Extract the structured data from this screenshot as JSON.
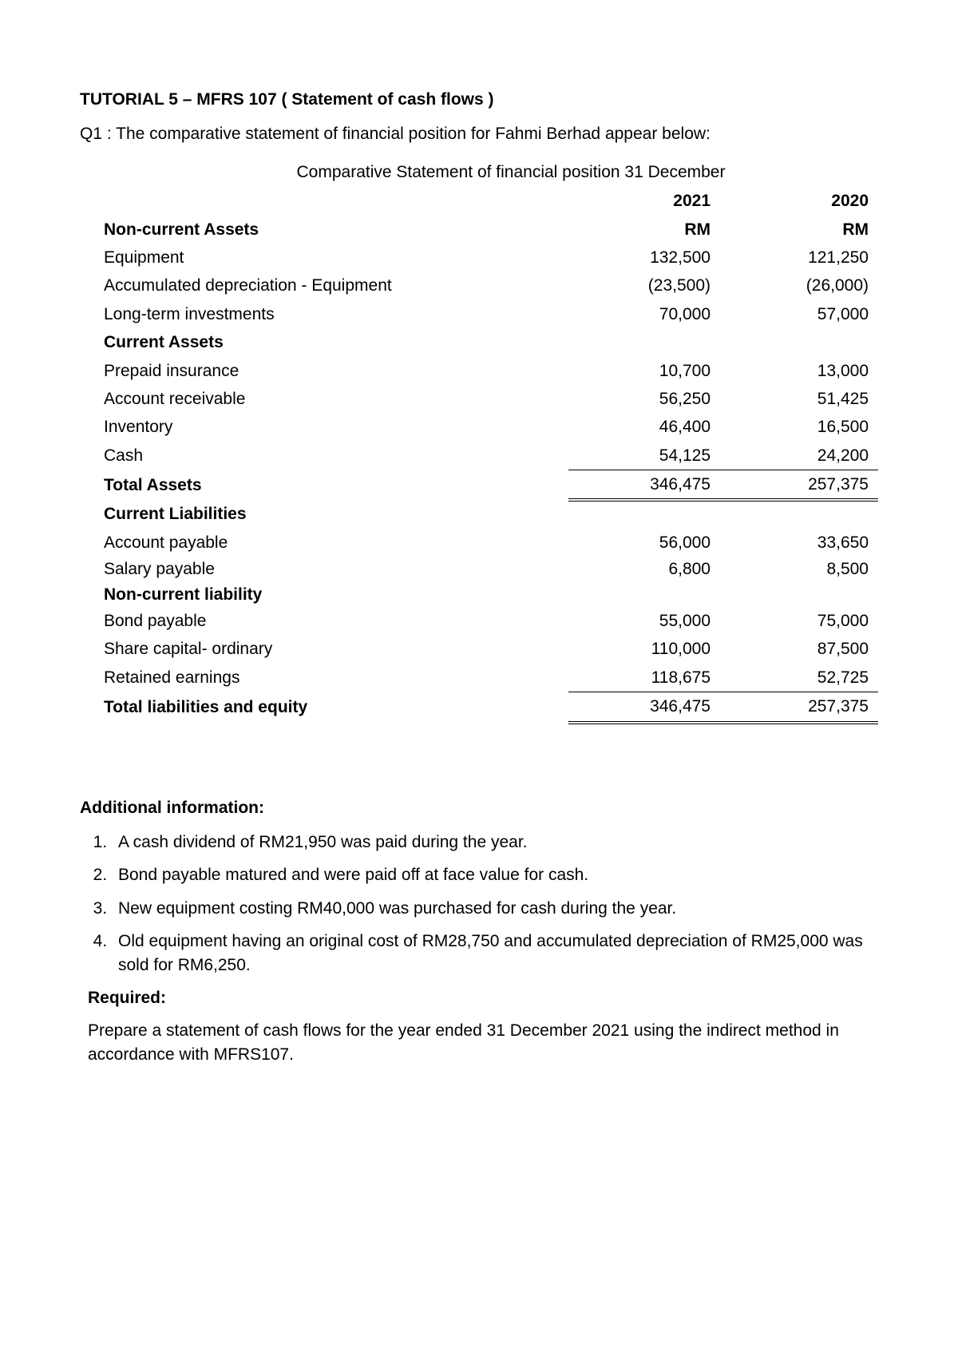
{
  "doc": {
    "title": "TUTORIAL 5 – MFRS 107 ( Statement of cash flows )",
    "question_intro": "Q1 : The comparative statement of financial position for Fahmi Berhad appear below:",
    "table_caption": "Comparative Statement of financial position 31 December"
  },
  "table": {
    "year1": "2021",
    "year2": "2020",
    "currency1": "RM",
    "currency2": "RM",
    "sections": {
      "nca_header": "Non-current Assets",
      "ca_header": "Current Assets",
      "ta_header": "Total Assets",
      "cl_header": "Current Liabilities",
      "ncl_header": "Non-current liability",
      "tle_header": "Total liabilities and equity"
    },
    "rows": {
      "equipment": {
        "label": "Equipment",
        "y1": "132,500",
        "y2": "121,250"
      },
      "accdep": {
        "label": "Accumulated depreciation - Equipment",
        "y1": "(23,500)",
        "y2": "(26,000)"
      },
      "ltinv": {
        "label": "Long-term investments",
        "y1": "70,000",
        "y2": "57,000"
      },
      "prepaid": {
        "label": "Prepaid insurance",
        "y1": "10,700",
        "y2": "13,000"
      },
      "ar": {
        "label": "Account receivable",
        "y1": "56,250",
        "y2": "51,425"
      },
      "inventory": {
        "label": "Inventory",
        "y1": "46,400",
        "y2": "16,500"
      },
      "cash": {
        "label": "Cash",
        "y1": "54,125",
        "y2": "24,200"
      },
      "total_assets": {
        "y1": "346,475",
        "y2": "257,375"
      },
      "ap": {
        "label": "Account payable",
        "y1": "56,000",
        "y2": "33,650"
      },
      "salary": {
        "label": "Salary payable",
        "y1": "6,800",
        "y2": "8,500"
      },
      "bond": {
        "label": "Bond payable",
        "y1": "55,000",
        "y2": "75,000"
      },
      "share": {
        "label": "Share capital- ordinary",
        "y1": "110,000",
        "y2": "87,500"
      },
      "re": {
        "label": "Retained earnings",
        "y1": "118,675",
        "y2": "52,725"
      },
      "total_le": {
        "y1": "346,475",
        "y2": "257,375"
      }
    }
  },
  "additional": {
    "title": "Additional information:",
    "items": [
      "A cash dividend of RM21,950 was paid during the year.",
      "Bond payable matured and were paid off at face value for cash.",
      "New equipment costing RM40,000 was purchased for cash during the year.",
      "Old equipment having an original cost of RM28,750 and accumulated depreciation of RM25,000 was sold for RM6,250."
    ]
  },
  "required": {
    "title": "Required:",
    "text": "Prepare a statement of cash flows for the year ended 31 December 2021 using the indirect method in accordance with MFRS107."
  },
  "styling": {
    "text_color": "#000000",
    "background_color": "#ffffff",
    "font_family": "Verdana",
    "body_fontsize": 21,
    "border_color": "#000000"
  }
}
